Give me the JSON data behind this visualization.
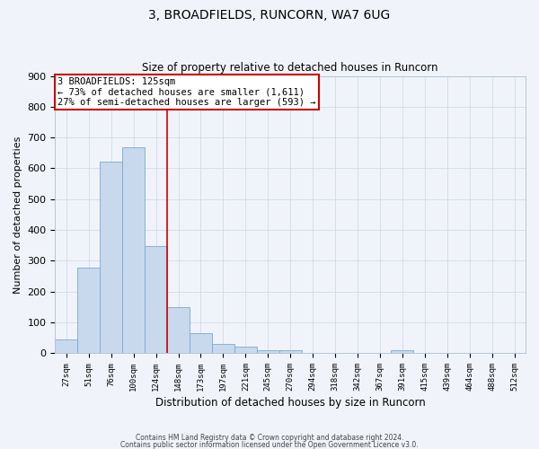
{
  "title": "3, BROADFIELDS, RUNCORN, WA7 6UG",
  "subtitle": "Size of property relative to detached houses in Runcorn",
  "xlabel": "Distribution of detached houses by size in Runcorn",
  "ylabel": "Number of detached properties",
  "bar_color": "#c8d8ed",
  "bar_edge_color": "#7aaad0",
  "categories": [
    "27sqm",
    "51sqm",
    "76sqm",
    "100sqm",
    "124sqm",
    "148sqm",
    "173sqm",
    "197sqm",
    "221sqm",
    "245sqm",
    "270sqm",
    "294sqm",
    "318sqm",
    "342sqm",
    "367sqm",
    "391sqm",
    "415sqm",
    "439sqm",
    "464sqm",
    "488sqm",
    "512sqm"
  ],
  "values": [
    43,
    278,
    621,
    668,
    347,
    148,
    65,
    30,
    20,
    10,
    10,
    0,
    0,
    0,
    0,
    8,
    0,
    0,
    0,
    0,
    0
  ],
  "ylim": [
    0,
    900
  ],
  "yticks": [
    0,
    100,
    200,
    300,
    400,
    500,
    600,
    700,
    800,
    900
  ],
  "vline_index": 4,
  "annotation_title": "3 BROADFIELDS: 125sqm",
  "annotation_line1": "← 73% of detached houses are smaller (1,611)",
  "annotation_line2": "27% of semi-detached houses are larger (593) →",
  "annotation_box_color": "#ffffff",
  "annotation_box_edge": "#cc0000",
  "vline_color": "#cc0000",
  "footer1": "Contains HM Land Registry data © Crown copyright and database right 2024.",
  "footer2": "Contains public sector information licensed under the Open Government Licence v3.0.",
  "grid_color": "#d0daea",
  "background_color": "#f0f4fa",
  "plot_bg_color": "#f0f4fa"
}
